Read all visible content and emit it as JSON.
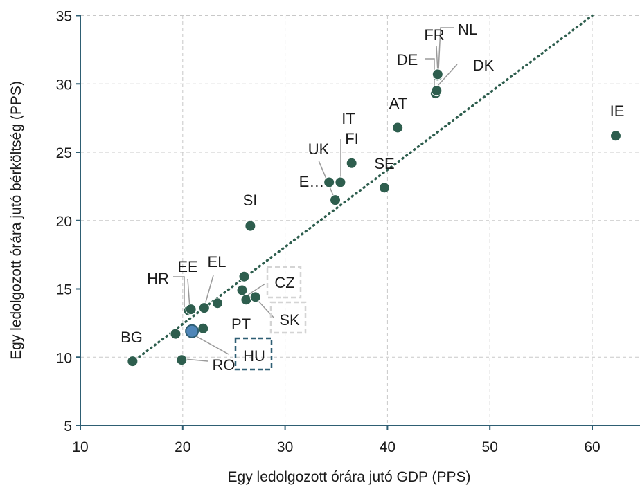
{
  "chart_data": {
    "type": "scatter",
    "title": "",
    "xlabel": "Egy ledolgozott órára jutó GDP (PPS)",
    "ylabel": "Egy ledolgozott órára jutó bérköltség (PPS)",
    "xlim": [
      10,
      62
    ],
    "ylim": [
      5,
      35
    ],
    "x_ticks": [
      10,
      20,
      30,
      40,
      50,
      60
    ],
    "y_ticks": [
      5,
      10,
      15,
      20,
      25,
      30,
      35
    ],
    "grid": true,
    "colors": {
      "point": "#2e5e4e",
      "highlight": "#4f86b8",
      "trend": "#2e5e4e",
      "axis": "#2e5e73",
      "grid": "#c8c8c8"
    },
    "trendline": {
      "style": "dotted",
      "x": [
        15,
        60
      ],
      "y": [
        9.6,
        35
      ]
    },
    "points": [
      {
        "label": "BG",
        "x": 15.1,
        "y": 9.7
      },
      {
        "label": "RO",
        "x": 19.9,
        "y": 9.8
      },
      {
        "label": "",
        "x": 19.3,
        "y": 11.7
      },
      {
        "label": "",
        "x": 22.0,
        "y": 12.1
      },
      {
        "label": "HU",
        "x": 20.9,
        "y": 11.9,
        "highlight": true
      },
      {
        "label": "HR",
        "x": 20.6,
        "y": 13.4
      },
      {
        "label": "EE",
        "x": 20.8,
        "y": 13.5
      },
      {
        "label": "EL",
        "x": 22.1,
        "y": 13.6
      },
      {
        "label": "",
        "x": 23.4,
        "y": 13.95
      },
      {
        "label": "PT",
        "x": 25.8,
        "y": 14.9
      },
      {
        "label": "",
        "x": 26.0,
        "y": 15.9
      },
      {
        "label": "CZ",
        "x": 26.2,
        "y": 14.2
      },
      {
        "label": "SK",
        "x": 27.1,
        "y": 14.4
      },
      {
        "label": "SI",
        "x": 26.6,
        "y": 19.6
      },
      {
        "label": "E…",
        "x": 34.3,
        "y": 22.8
      },
      {
        "label": "UK",
        "x": 34.9,
        "y": 21.5
      },
      {
        "label": "IT",
        "x": 35.4,
        "y": 22.8
      },
      {
        "label": "FI",
        "x": 36.5,
        "y": 24.2
      },
      {
        "label": "SE",
        "x": 39.7,
        "y": 22.4
      },
      {
        "label": "AT",
        "x": 41.0,
        "y": 26.8
      },
      {
        "label": "DE",
        "x": 44.7,
        "y": 29.3
      },
      {
        "label": "DK",
        "x": 44.8,
        "y": 29.5
      },
      {
        "label": "FR",
        "x": 44.9,
        "y": 30.6
      },
      {
        "label": "NL",
        "x": 44.9,
        "y": 30.7
      },
      {
        "label": "IE",
        "x": 62.3,
        "y": 26.2
      }
    ]
  }
}
